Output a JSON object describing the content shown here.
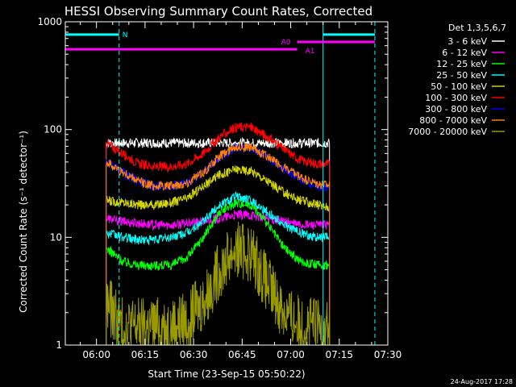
{
  "colors": {
    "background": "#000000",
    "axes": "#ffffff",
    "cyan": "#00ffff",
    "magenta": "#ff00ff"
  },
  "chart_data": {
    "type": "line",
    "title": "HESSI Observing Summary Count Rates, Corrected",
    "xlabel": "Start Time (23-Sep-15 05:50:22)",
    "ylabel": "Corrected Count Rate (s⁻¹ detector⁻¹)",
    "y_scale": "log",
    "xlim": [
      "05:50:22",
      "07:30:00"
    ],
    "ylim": [
      1,
      1000
    ],
    "x_ticks": [
      "06:00",
      "06:15",
      "06:30",
      "06:45",
      "07:00",
      "07:15",
      "07:30"
    ],
    "y_ticks": [
      "1",
      "10",
      "100",
      "1000"
    ],
    "grid": false,
    "legend_position": "right",
    "legend_title": "Det 1,3,5,6,7",
    "footer_date": "24-Aug-2017 17:28",
    "x": [
      "06:03",
      "06:08",
      "06:13",
      "06:18",
      "06:23",
      "06:28",
      "06:33",
      "06:38",
      "06:43",
      "06:48",
      "06:53",
      "06:58",
      "07:03",
      "07:08",
      "07:12"
    ],
    "series": [
      {
        "name": "3 - 6 keV",
        "color": "#ffffff",
        "values": [
          75,
          75,
          75,
          75,
          75,
          75,
          75,
          75,
          75,
          75,
          75,
          75,
          75,
          75,
          75
        ]
      },
      {
        "name": "6 - 12 keV",
        "color": "#ff00ff",
        "values": [
          15,
          14,
          13.5,
          13,
          13,
          13.5,
          14,
          15,
          16,
          16,
          15,
          14,
          13,
          13,
          13
        ]
      },
      {
        "name": "12 - 25 keV",
        "color": "#00ff00",
        "values": [
          8,
          6,
          5.5,
          5.5,
          5.5,
          6.5,
          10,
          17,
          21,
          20,
          13,
          8,
          6,
          5.5,
          5.5
        ]
      },
      {
        "name": "25 - 50 keV",
        "color": "#00ffff",
        "values": [
          11,
          10,
          9.5,
          9.5,
          10,
          11,
          14,
          20,
          24,
          22,
          17,
          13,
          11,
          10,
          10
        ]
      },
      {
        "name": "50 - 100 keV",
        "color": "#d4d400",
        "values": [
          22,
          21,
          20,
          20,
          21,
          23,
          30,
          38,
          43,
          41,
          33,
          26,
          22,
          20,
          19
        ]
      },
      {
        "name": "100 - 300 keV",
        "color": "#ff0000",
        "values": [
          75,
          60,
          48,
          45,
          45,
          48,
          60,
          85,
          105,
          105,
          85,
          65,
          52,
          48,
          48
        ]
      },
      {
        "name": "300 - 800 keV",
        "color": "#0000ff",
        "values": [
          50,
          40,
          33,
          30,
          30,
          32,
          40,
          55,
          68,
          67,
          55,
          43,
          35,
          30,
          29
        ]
      },
      {
        "name": "800 - 7000 keV",
        "color": "#ff8000",
        "values": [
          50,
          40,
          33,
          30,
          30,
          32,
          40,
          56,
          70,
          68,
          56,
          44,
          36,
          31,
          30
        ]
      },
      {
        "name": "7000 - 20000 keV",
        "color": "#999900",
        "values": [
          2.5,
          1.5,
          1.5,
          1.5,
          1.5,
          1.7,
          2.5,
          5,
          8,
          7,
          3.5,
          2,
          1.5,
          1.5,
          1.5
        ]
      }
    ],
    "annotations": [
      {
        "label": "N",
        "color": "#00ffff",
        "level": 760,
        "from": "05:50:22",
        "to": "06:07:00"
      },
      {
        "label": "A0",
        "color": "#ff00ff",
        "level": 650,
        "from": "07:02:00",
        "to": "07:26:00"
      },
      {
        "label": "A1",
        "color": "#ff00ff",
        "level": 555,
        "from": "05:50:22",
        "to": "07:02:00"
      },
      {
        "label": "",
        "color": "#00ffff",
        "level": 760,
        "from": "07:10:00",
        "to": "07:26:00"
      }
    ],
    "vertical_markers": [
      {
        "time": "05:50:22",
        "style": "solid",
        "color": "#00ffff"
      },
      {
        "time": "06:07:00",
        "style": "dashed",
        "color": "#00ffff"
      },
      {
        "time": "07:10:00",
        "style": "solid",
        "color": "#00ffff"
      },
      {
        "time": "07:26:00",
        "style": "dashed",
        "color": "#00ffff"
      }
    ]
  }
}
